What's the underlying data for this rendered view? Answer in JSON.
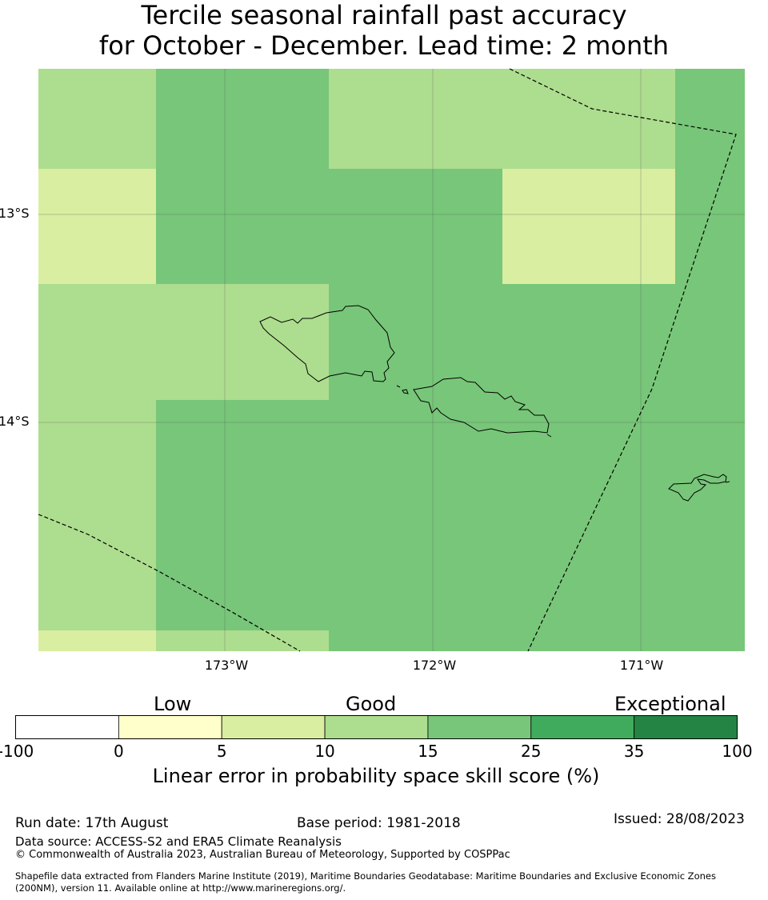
{
  "title_line1": "Tercile seasonal rainfall past accuracy",
  "title_line2": "for October - December. Lead time: 2 month",
  "map": {
    "lat_labels": [
      "13°S",
      "14°S"
    ],
    "lon_labels": [
      "173°W",
      "172°W",
      "171°W"
    ],
    "fill_colors": {
      "5_10": "#d9eea1",
      "10_15": "#addd8e",
      "15_25": "#78c679"
    }
  },
  "colorbar": {
    "category_labels": [
      "Low",
      "Good",
      "Exceptional"
    ],
    "ticks": [
      "-100",
      "0",
      "5",
      "10",
      "15",
      "25",
      "35",
      "100"
    ],
    "colors": [
      "#ffffff",
      "#ffffcc",
      "#d9eea1",
      "#addd8e",
      "#78c679",
      "#41ab5d",
      "#238443"
    ],
    "label": "Linear error in probability space skill score (%)"
  },
  "footer": {
    "run_date": "Run date: 17th August",
    "base_period": "Base period: 1981-2018",
    "issued": "Issued: 28/08/2023",
    "data_source": "Data source: ACCESS-S2 and ERA5 Climate Reanalysis",
    "copyright": "© Commonwealth of Australia 2023, Australian Bureau of Meteorology, Supported by COSPPac",
    "shapefile_line1": "Shapefile data extracted from Flanders Marine Institute (2019), Maritime Boundaries Geodatabase: Maritime Boundaries and Exclusive Economic Zones",
    "shapefile_line2": "(200NM), version 11. Available online at http://www.marineregions.org/."
  }
}
